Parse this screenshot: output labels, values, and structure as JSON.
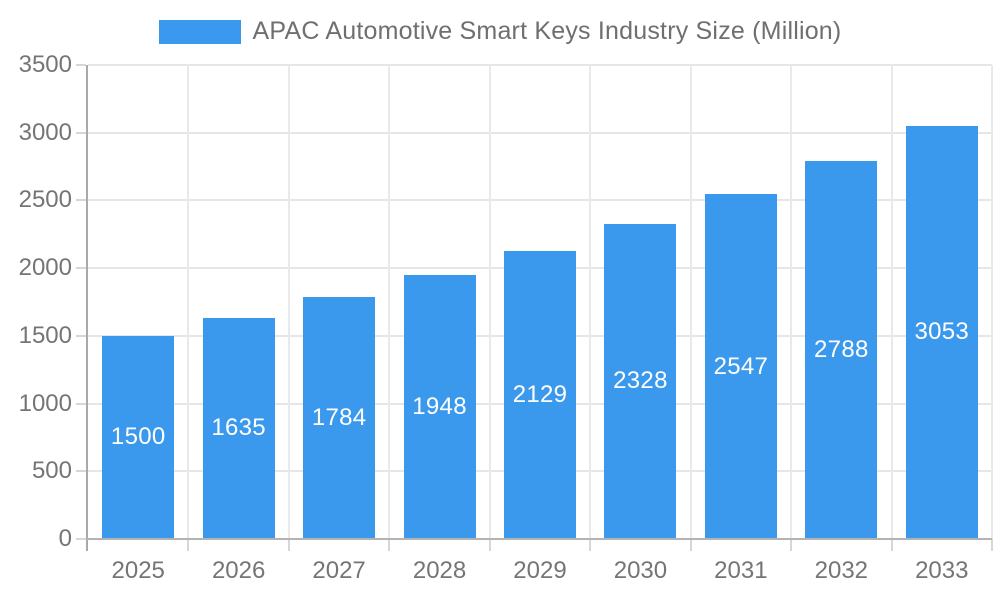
{
  "chart_data": {
    "type": "bar",
    "title": "APAC Automotive Smart Keys Industry Size (Million)",
    "categories": [
      "2025",
      "2026",
      "2027",
      "2028",
      "2029",
      "2030",
      "2031",
      "2032",
      "2033"
    ],
    "values": [
      1500,
      1635,
      1784,
      1948,
      2129,
      2328,
      2547,
      2788,
      3053
    ],
    "xlabel": "",
    "ylabel": "",
    "ylim": [
      0,
      3500
    ],
    "ytick_step": 500,
    "ytick_labels": [
      "0",
      "500",
      "1000",
      "1500",
      "2000",
      "2500",
      "3000",
      "3500"
    ],
    "grid": true,
    "legend_position": "top",
    "value_labels": "inside-center",
    "colors": {
      "bar": "#3a99ec",
      "value_label": "#ffffff",
      "axis_text": "#757575",
      "legend_text": "#6f6f6f",
      "gridline": "#e6e6e6",
      "axis_line": "#a9a9a9"
    }
  }
}
